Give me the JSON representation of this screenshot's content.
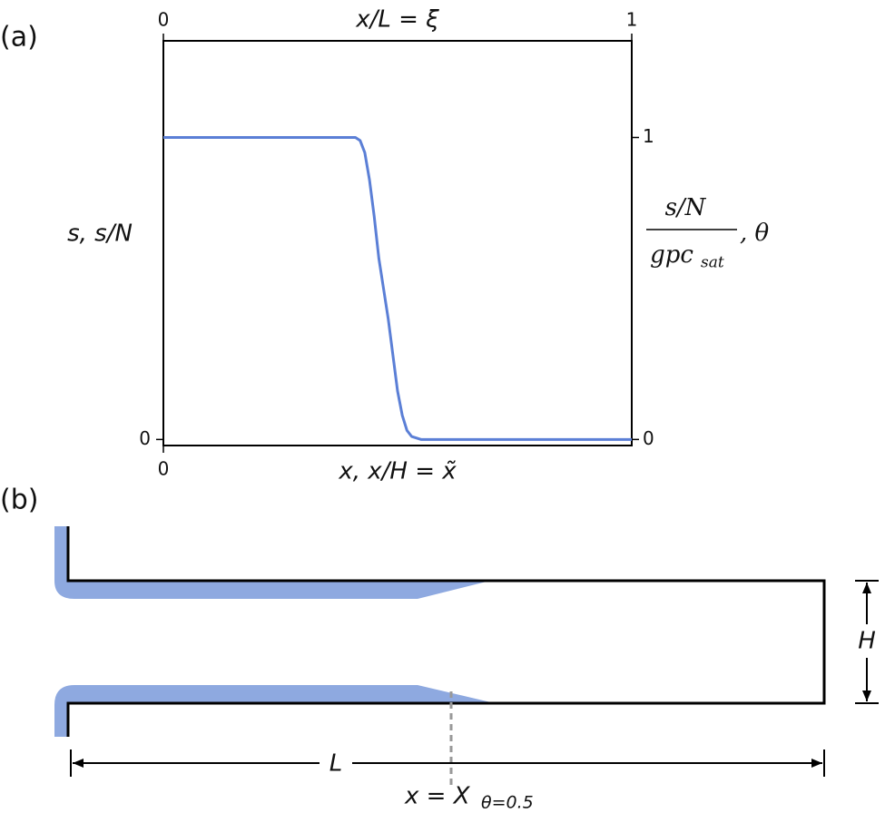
{
  "chart_data": {
    "type": "line",
    "panel_label": "(a)",
    "x2label": "x/L = ξ",
    "xlabel": "x, x/H = x̃",
    "ylabel": "s, s/N",
    "y2label": {
      "numerator": "s/N",
      "denominator": "gpc",
      "denominator_sub": "sat",
      "suffix": ", θ"
    },
    "x": [
      0,
      0.1,
      0.2,
      0.3,
      0.4,
      0.41,
      0.42,
      0.43,
      0.44,
      0.45,
      0.46,
      0.47,
      0.48,
      0.49,
      0.5,
      0.51,
      0.52,
      0.53,
      0.55,
      0.6,
      0.7,
      0.8,
      0.9,
      1.0
    ],
    "series": [
      {
        "color": "#5b7fd6",
        "axis": "y2",
        "values": [
          1,
          1,
          1,
          1,
          1,
          1,
          0.99,
          0.95,
          0.86,
          0.74,
          0.6,
          0.5,
          0.4,
          0.28,
          0.16,
          0.08,
          0.03,
          0.01,
          0,
          0,
          0,
          0,
          0,
          0
        ]
      }
    ],
    "xlim": [
      0,
      1
    ],
    "xticks": [
      0
    ],
    "x2lim": [
      0,
      1
    ],
    "x2ticks": [
      0,
      1
    ],
    "ylim": [
      -0.02,
      1.32
    ],
    "yticks": [
      0
    ],
    "y2lim": [
      -0.02,
      1.32
    ],
    "y2ticks": [
      0,
      1
    ]
  },
  "panel_b": {
    "label": "(b)",
    "height_label": "H",
    "length_label": "L",
    "position_label": "x = X",
    "position_sub": "θ=0.5"
  }
}
